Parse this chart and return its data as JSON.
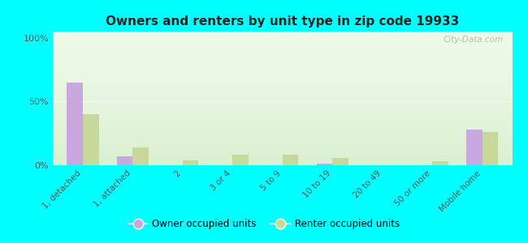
{
  "title": "Owners and renters by unit type in zip code 19933",
  "categories": [
    "1, detached",
    "1, attached",
    "2",
    "3 or 4",
    "5 to 9",
    "10 to 19",
    "20 to 49",
    "50 or more",
    "Mobile home"
  ],
  "owner_values": [
    65,
    7,
    0,
    0,
    0,
    1,
    0,
    0,
    28
  ],
  "renter_values": [
    40,
    14,
    4,
    8,
    8,
    6,
    0,
    3,
    26
  ],
  "owner_color": "#c9a8e0",
  "renter_color": "#c8d89a",
  "background_color": "#00ffff",
  "yticks": [
    0,
    50,
    100
  ],
  "ylim": [
    0,
    105
  ],
  "ylabel_labels": [
    "0%",
    "50%",
    "100%"
  ],
  "watermark": "City-Data.com",
  "legend_owner": "Owner occupied units",
  "legend_renter": "Renter occupied units",
  "bar_width": 0.32
}
